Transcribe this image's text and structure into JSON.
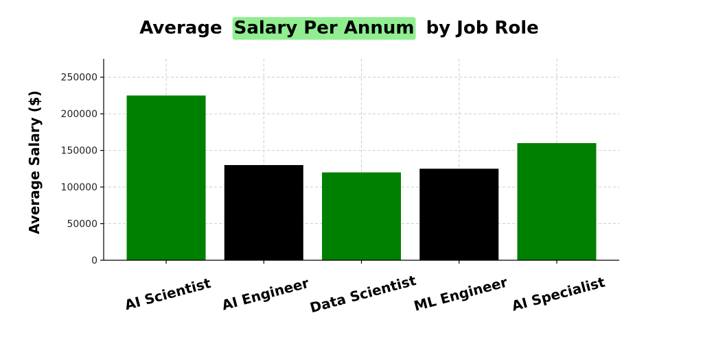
{
  "chart_data": {
    "type": "bar",
    "title": {
      "before": "Average",
      "highlight": "Salary Per Annum",
      "after": "by Job Role",
      "highlight_color": "#90ee90"
    },
    "xlabel": "",
    "ylabel": "Average Salary ($)",
    "categories": [
      "AI Scientist",
      "AI Engineer",
      "Data Scientist",
      "ML Engineer",
      "AI Specialist"
    ],
    "values": [
      225000,
      130000,
      120000,
      125000,
      160000
    ],
    "bar_colors": [
      "#008000",
      "#000000",
      "#008000",
      "#000000",
      "#008000"
    ],
    "ylim": [
      0,
      275000
    ],
    "yticks": [
      0,
      50000,
      100000,
      150000,
      200000,
      250000
    ],
    "ytick_labels": [
      "0",
      "50000",
      "100000",
      "150000",
      "200000",
      "250000"
    ],
    "grid": true
  }
}
